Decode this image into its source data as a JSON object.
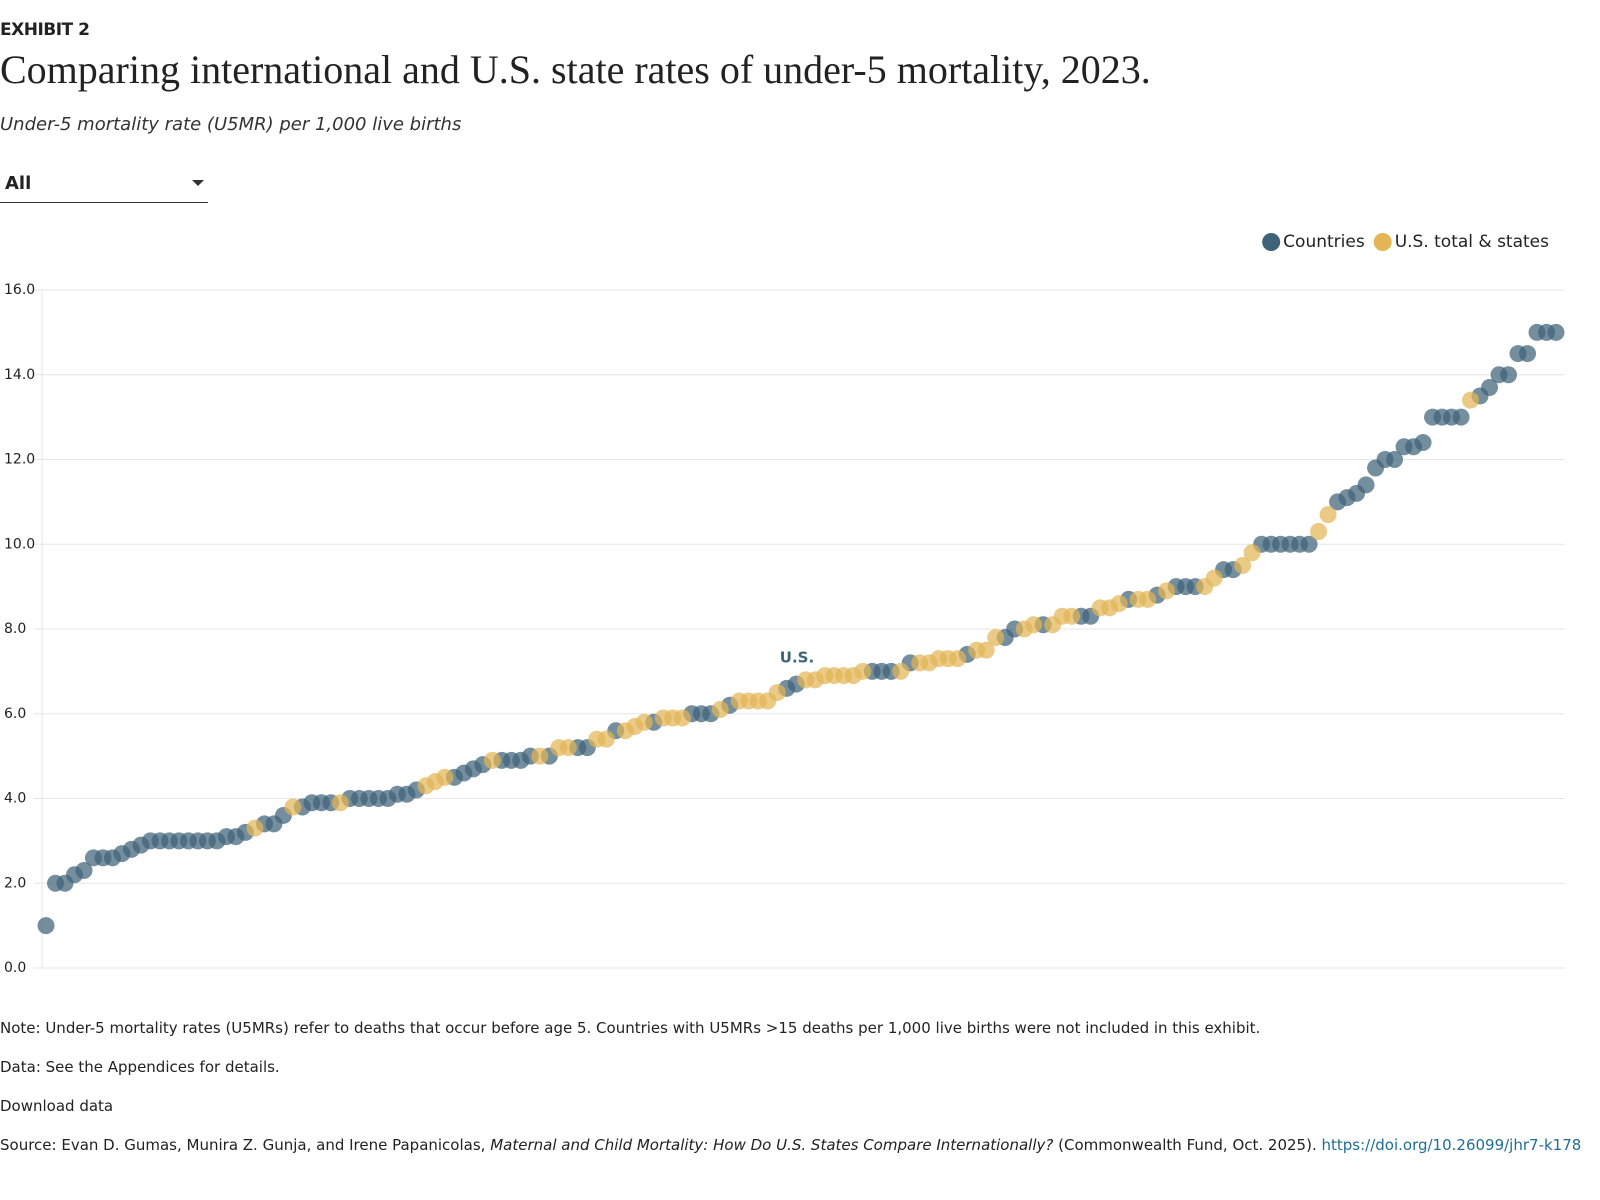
{
  "exhibit": "EXHIBIT 2",
  "filter": "All",
  "notes": {
    "note": "Note: Under-5 mortality rates (U5MRs) refer to deaths that occur before age 5. Countries with U5MRs >15 deaths per 1,000 live births were not included in this exhibit.",
    "data": "Data: See the Appendices for details.",
    "download": "Download data",
    "source_prefix": "Source: Evan D. Gumas, Munira Z. Gunja, and Irene Papanicolas,",
    "source_title": "Maternal and Child Mortality: How Do U.S. States Compare Internationally?",
    "source_suffix": "(Commonwealth Fund, Oct. 2025).",
    "source_link": "https://doi.org/10.26099/jhr7-k178"
  },
  "chart_data": {
    "type": "scatter",
    "title": "Comparing international and U.S. state rates of under-5 mortality, 2023.",
    "subtitle": "Under-5 mortality rate (U5MR) per 1,000 live births",
    "annotation": "U.S.",
    "legend": "top-right",
    "grid": true,
    "ylim": [
      0,
      16
    ],
    "yticks": [
      {
        "value": 0,
        "label": "0.0"
      },
      {
        "value": 2,
        "label": "2.0"
      },
      {
        "value": 4,
        "label": "4.0"
      },
      {
        "value": 6,
        "label": "6.0"
      },
      {
        "value": 8,
        "label": "8.0"
      },
      {
        "value": 10,
        "label": "10.0"
      },
      {
        "value": 12,
        "label": "12.0"
      },
      {
        "value": 14,
        "label": "14.0"
      },
      {
        "value": 16,
        "label": "16.0"
      }
    ],
    "series": [
      {
        "name": "Countries",
        "color": "#3e6378",
        "values": [
          1,
          2,
          2,
          2.2,
          2.3,
          2.6,
          2.6,
          2.6,
          2.7,
          2.8,
          2.9,
          3,
          3,
          3,
          3,
          3,
          3,
          3,
          3,
          3.1,
          3.1,
          3.2,
          null,
          3.4,
          3.4,
          3.6,
          null,
          3.8,
          3.9,
          3.9,
          3.9,
          null,
          4,
          4,
          4,
          4,
          4,
          4.1,
          4.1,
          4.2,
          null,
          null,
          null,
          4.5,
          4.6,
          4.7,
          4.8,
          null,
          4.9,
          4.9,
          4.9,
          5,
          null,
          5,
          null,
          null,
          5.2,
          5.2,
          null,
          null,
          5.6,
          null,
          null,
          null,
          5.8,
          null,
          null,
          null,
          6,
          6,
          6,
          null,
          6.2,
          null,
          null,
          null,
          null,
          null,
          6.6,
          6.7,
          null,
          null,
          null,
          null,
          null,
          null,
          null,
          7,
          7,
          7,
          null,
          7.2,
          null,
          null,
          null,
          null,
          null,
          7.4,
          null,
          null,
          null,
          7.8,
          8,
          null,
          null,
          8.1,
          null,
          null,
          null,
          8.3,
          8.3,
          null,
          null,
          null,
          8.7,
          null,
          null,
          8.8,
          null,
          9,
          9,
          9,
          null,
          null,
          9.4,
          9.4,
          null,
          null,
          10,
          10,
          10,
          10,
          10,
          10,
          null,
          null,
          11,
          11.1,
          11.2,
          11.4,
          11.8,
          12,
          12,
          12.3,
          12.3,
          12.4,
          13,
          13,
          13,
          13,
          null,
          13.5,
          13.7,
          14,
          14,
          14.5,
          14.5,
          15,
          15,
          15
        ]
      },
      {
        "name": "U.S. total & states",
        "color": "#e2b654",
        "values": [
          null,
          null,
          null,
          null,
          null,
          null,
          null,
          null,
          null,
          null,
          null,
          null,
          null,
          null,
          null,
          null,
          null,
          null,
          null,
          null,
          null,
          null,
          3.3,
          null,
          null,
          null,
          3.8,
          null,
          null,
          null,
          null,
          3.9,
          null,
          null,
          null,
          null,
          null,
          null,
          null,
          null,
          4.3,
          4.4,
          4.5,
          null,
          null,
          null,
          null,
          4.9,
          null,
          null,
          null,
          null,
          5,
          null,
          5.2,
          5.2,
          null,
          null,
          5.4,
          5.4,
          null,
          5.6,
          5.7,
          5.8,
          null,
          5.9,
          5.9,
          5.9,
          null,
          null,
          null,
          6.1,
          null,
          6.3,
          6.3,
          6.3,
          6.3,
          6.5,
          null,
          null,
          6.8,
          6.8,
          6.9,
          6.9,
          6.9,
          6.9,
          7,
          null,
          null,
          null,
          7,
          null,
          7.2,
          7.2,
          7.3,
          7.3,
          7.3,
          null,
          7.5,
          7.5,
          7.8,
          null,
          null,
          8,
          8.1,
          null,
          8.1,
          8.3,
          8.3,
          null,
          null,
          8.5,
          8.5,
          8.6,
          null,
          8.7,
          8.7,
          null,
          8.9,
          null,
          null,
          null,
          9,
          9.2,
          null,
          null,
          9.5,
          9.8,
          null,
          null,
          null,
          null,
          null,
          null,
          10.3,
          10.7,
          null,
          null,
          null,
          null,
          null,
          null,
          null,
          null,
          null,
          null,
          null,
          null,
          null,
          null,
          13.4,
          null,
          null,
          null,
          null,
          null,
          null,
          null,
          null,
          null
        ]
      }
    ]
  }
}
